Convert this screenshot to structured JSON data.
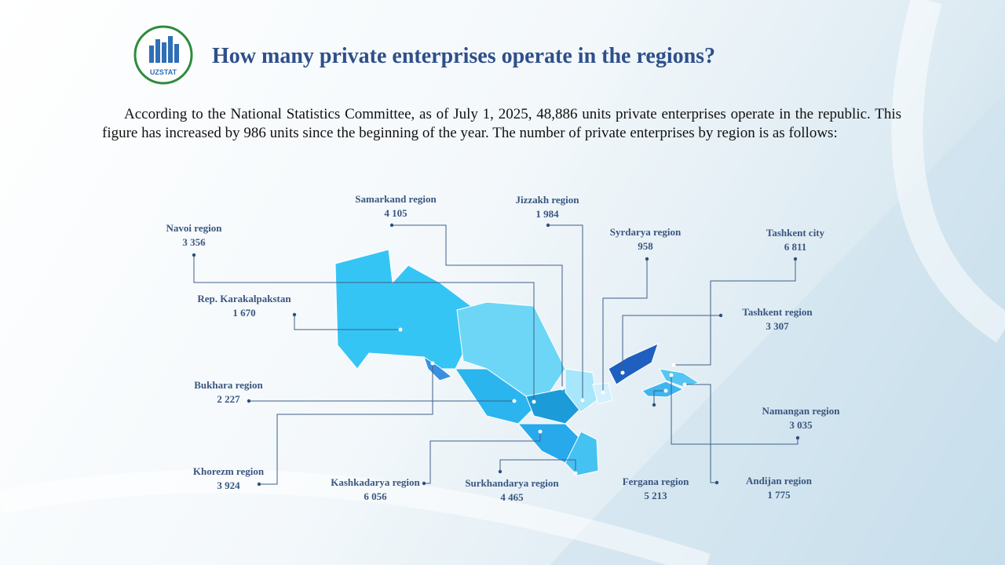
{
  "logo_text": "UZSTAT",
  "title": "How many private enterprises operate in the regions?",
  "paragraph": "According to the National Statistics Committee, as of July 1, 2025, 48,886 units private enterprises operate in the republic. This figure has increased by 986 units since the beginning of the year. The number of private enterprises by region is as follows:",
  "regions": [
    {
      "name": "Samarkand region",
      "value": "4 105"
    },
    {
      "name": "Jizzakh region",
      "value": "1 984"
    },
    {
      "name": "Navoi region",
      "value": "3 356"
    },
    {
      "name": "Syrdarya  region",
      "value": "958"
    },
    {
      "name": "Tashkent city",
      "value": "6 811"
    },
    {
      "name": "Rep. Karakalpakstan",
      "value": "1 670"
    },
    {
      "name": "Tashkent region",
      "value": "3 307"
    },
    {
      "name": "Bukhara region",
      "value": "2 227"
    },
    {
      "name": "Namangan region",
      "value": "3 035"
    },
    {
      "name": "Khorezm region",
      "value": "3 924"
    },
    {
      "name": "Kashkadarya region",
      "value": "6 056"
    },
    {
      "name": "Surkhandarya  region",
      "value": "4 465"
    },
    {
      "name": "Fergana region",
      "value": "5 213"
    },
    {
      "name": "Andijan region",
      "value": "1 775"
    }
  ]
}
